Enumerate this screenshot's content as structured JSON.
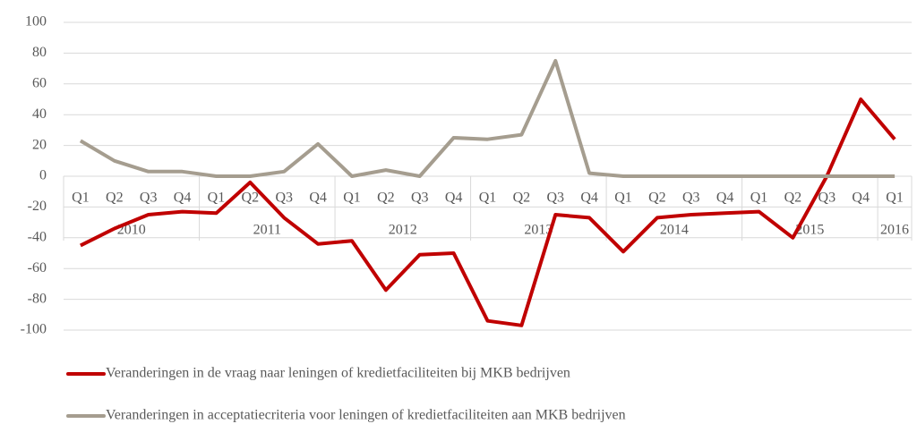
{
  "chart_data": {
    "type": "line",
    "categories": [
      "Q1",
      "Q2",
      "Q3",
      "Q4",
      "Q1",
      "Q2",
      "Q3",
      "Q4",
      "Q1",
      "Q2",
      "Q3",
      "Q4",
      "Q1",
      "Q2",
      "Q3",
      "Q4",
      "Q1",
      "Q2",
      "Q3",
      "Q4",
      "Q1",
      "Q2",
      "Q3",
      "Q4",
      "Q1"
    ],
    "category_groups": [
      "2010",
      "2011",
      "2012",
      "2013",
      "2014",
      "2015",
      "2016"
    ],
    "series": [
      {
        "name": "Veranderingen in de vraag naar leningen of kredietfaciliteiten bij MKB bedrijven",
        "color": "#c00000",
        "values": [
          -45,
          -34,
          -25,
          -23,
          -24,
          -4,
          -27,
          -44,
          -42,
          -74,
          -51,
          -50,
          -94,
          -97,
          -25,
          -27,
          -49,
          -27,
          -25,
          -24,
          -23,
          -40,
          0,
          50,
          24
        ]
      },
      {
        "name": "Veranderingen in acceptatiecriteria voor leningen of kredietfaciliteiten aan MKB bedrijven",
        "color": "#a59d8f",
        "values": [
          23,
          10,
          3,
          3,
          0,
          0,
          3,
          21,
          0,
          4,
          0,
          25,
          24,
          27,
          75,
          2,
          0,
          0,
          0,
          0,
          0,
          0,
          0,
          0,
          0
        ]
      }
    ],
    "ylim": [
      -100,
      100
    ],
    "yticks": [
      -100,
      -80,
      -60,
      -40,
      -20,
      0,
      20,
      40,
      60,
      80,
      100
    ],
    "grid": true
  }
}
